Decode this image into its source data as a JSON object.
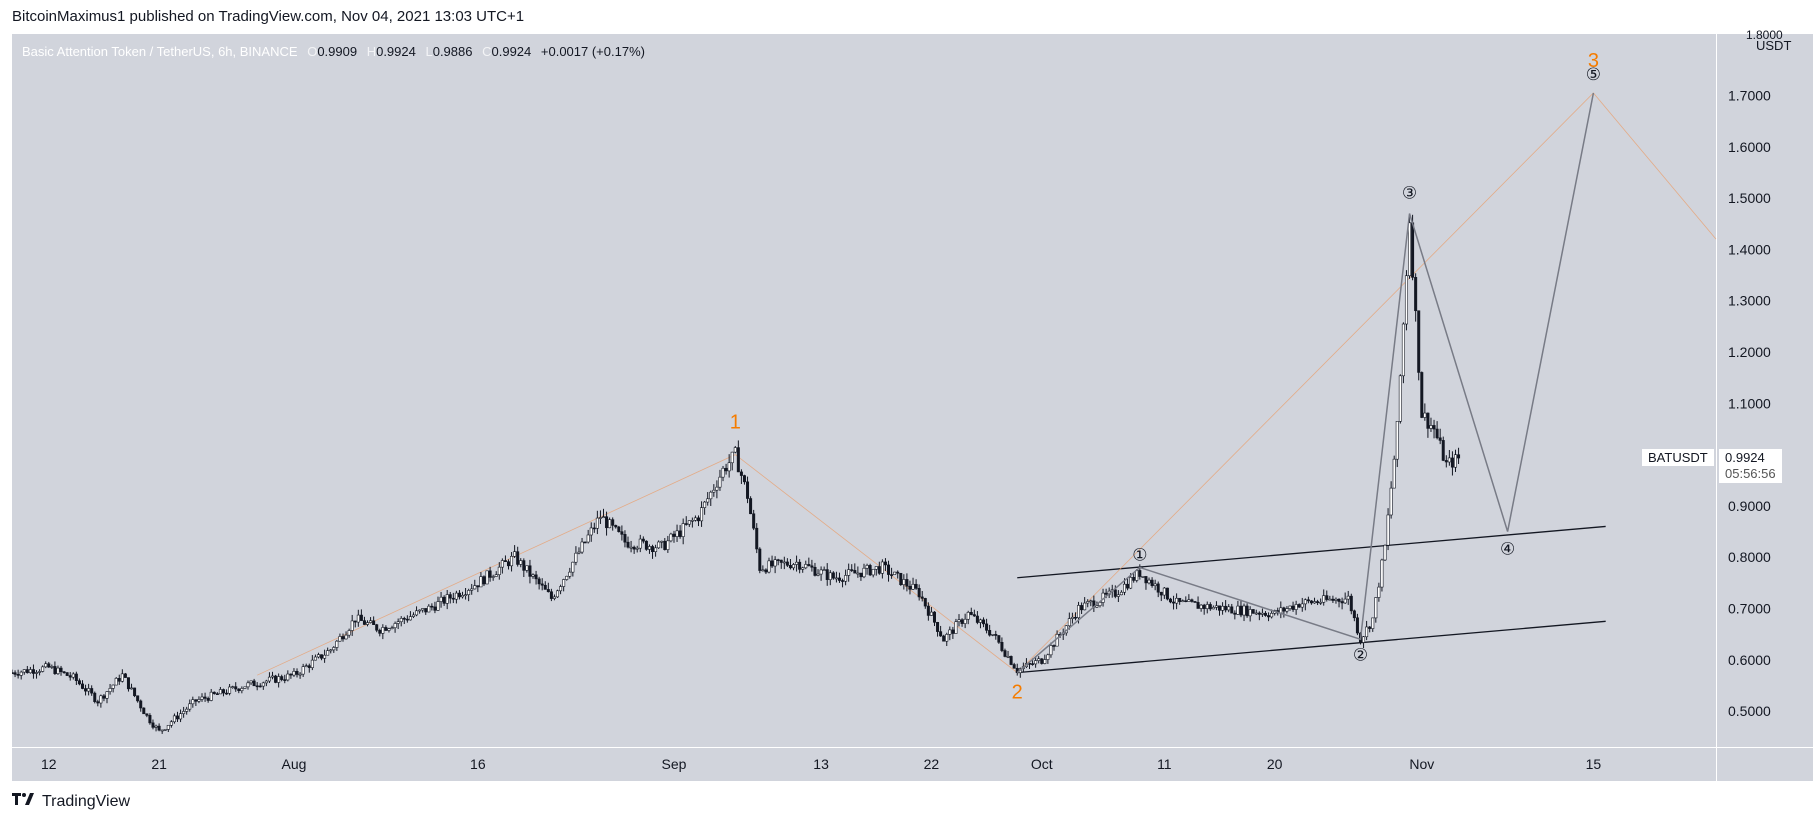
{
  "header": {
    "publisher": "BitcoinMaximus1 published on TradingView.com, Nov 04, 2021 13:03 UTC+1"
  },
  "legend": {
    "symbol": "Basic Attention Token / TetherUS, 6h, BINANCE",
    "o_label": "O",
    "o": "0.9909",
    "h_label": "H",
    "h": "0.9924",
    "l_label": "L",
    "l": "0.9886",
    "c_label": "C",
    "c": "0.9924",
    "change": "+0.0017 (+0.17%)"
  },
  "price_badge": {
    "symbol": "BATUSDT",
    "price": "0.9924",
    "countdown": "05:56:56"
  },
  "axis": {
    "currency": "USDT",
    "top_label": "1.8000"
  },
  "brand": {
    "name": "TradingView"
  },
  "colors": {
    "background": "#d1d4dc",
    "candle": "#131722",
    "wave_orange": "#f57c00",
    "wave_line": "#787b86",
    "channel": "#131722"
  },
  "chart_data": {
    "type": "candlestick",
    "title": "Basic Attention Token / TetherUS, 6h, BINANCE",
    "ylabel": "USDT",
    "ylim": [
      0.43,
      1.82
    ],
    "y_ticks": [
      0.5,
      0.6,
      0.7,
      0.8,
      0.9,
      1.0,
      1.1,
      1.2,
      1.3,
      1.4,
      1.5,
      1.6,
      1.7
    ],
    "x_ticks": [
      "12",
      "21",
      "Aug",
      "16",
      "Sep",
      "13",
      "22",
      "Oct",
      "11",
      "20",
      "Nov",
      "15"
    ],
    "x_tick_dates": [
      "2021-07-12",
      "2021-07-21",
      "2021-08-01",
      "2021-08-16",
      "2021-09-01",
      "2021-09-13",
      "2021-09-22",
      "2021-10-01",
      "2021-10-11",
      "2021-10-20",
      "2021-11-01",
      "2021-11-15"
    ],
    "price_path": [
      [
        "2021-07-09",
        0.575
      ],
      [
        "2021-07-12",
        0.585
      ],
      [
        "2021-07-14",
        0.565
      ],
      [
        "2021-07-16",
        0.52
      ],
      [
        "2021-07-18",
        0.57
      ],
      [
        "2021-07-20",
        0.49
      ],
      [
        "2021-07-21",
        0.46
      ],
      [
        "2021-07-24",
        0.52
      ],
      [
        "2021-07-28",
        0.55
      ],
      [
        "2021-08-01",
        0.57
      ],
      [
        "2021-08-04",
        0.62
      ],
      [
        "2021-08-06",
        0.68
      ],
      [
        "2021-08-08",
        0.66
      ],
      [
        "2021-08-12",
        0.7
      ],
      [
        "2021-08-16",
        0.75
      ],
      [
        "2021-08-19",
        0.8
      ],
      [
        "2021-08-22",
        0.72
      ],
      [
        "2021-08-26",
        0.88
      ],
      [
        "2021-08-28",
        0.83
      ],
      [
        "2021-08-31",
        0.82
      ],
      [
        "2021-09-03",
        0.88
      ],
      [
        "2021-09-05",
        0.97
      ],
      [
        "2021-09-06",
        1.0
      ],
      [
        "2021-09-07",
        0.92
      ],
      [
        "2021-09-08",
        0.78
      ],
      [
        "2021-09-11",
        0.79
      ],
      [
        "2021-09-14",
        0.76
      ],
      [
        "2021-09-18",
        0.78
      ],
      [
        "2021-09-21",
        0.73
      ],
      [
        "2021-09-23",
        0.64
      ],
      [
        "2021-09-25",
        0.69
      ],
      [
        "2021-09-27",
        0.65
      ],
      [
        "2021-09-29",
        0.58
      ],
      [
        "2021-10-01",
        0.6
      ],
      [
        "2021-10-04",
        0.7
      ],
      [
        "2021-10-07",
        0.73
      ],
      [
        "2021-10-09",
        0.77
      ],
      [
        "2021-10-12",
        0.71
      ],
      [
        "2021-10-16",
        0.7
      ],
      [
        "2021-10-20",
        0.69
      ],
      [
        "2021-10-22",
        0.71
      ],
      [
        "2021-10-26",
        0.72
      ],
      [
        "2021-10-27",
        0.64
      ],
      [
        "2021-10-28",
        0.68
      ],
      [
        "2021-10-29",
        0.82
      ],
      [
        "2021-10-30",
        1.05
      ],
      [
        "2021-10-31",
        1.46
      ],
      [
        "2021-11-01",
        1.08
      ],
      [
        "2021-11-02",
        1.05
      ],
      [
        "2021-11-03",
        0.98
      ],
      [
        "2021-11-04",
        0.9924
      ]
    ],
    "wave_labels": [
      {
        "label": "1",
        "date": "2021-09-06",
        "price": 1.0,
        "color": "orange"
      },
      {
        "label": "2",
        "date": "2021-09-29",
        "price": 0.575,
        "color": "orange"
      },
      {
        "label": "3",
        "date": "2021-11-15",
        "price": 1.705,
        "color": "orange"
      },
      {
        "label": "①",
        "date": "2021-10-09",
        "price": 0.78
      },
      {
        "label": "②",
        "date": "2021-10-27",
        "price": 0.64
      },
      {
        "label": "③",
        "date": "2021-10-31",
        "price": 1.47
      },
      {
        "label": "④",
        "date": "2021-11-08",
        "price": 0.85
      },
      {
        "label": "⑤",
        "date": "2021-11-15",
        "price": 1.705
      }
    ],
    "wave_path": [
      [
        "2021-09-29",
        0.575
      ],
      [
        "2021-10-09",
        0.78
      ],
      [
        "2021-10-27",
        0.64
      ],
      [
        "2021-10-31",
        1.47
      ],
      [
        "2021-11-08",
        0.85
      ],
      [
        "2021-11-15",
        1.705
      ]
    ],
    "orange_path": [
      [
        "2021-07-29",
        0.57
      ],
      [
        "2021-09-06",
        1.0
      ],
      [
        "2021-09-29",
        0.575
      ],
      [
        "2021-11-15",
        1.705
      ],
      [
        "2021-11-25",
        1.42
      ]
    ],
    "channel_upper": [
      [
        "2021-09-29",
        0.76
      ],
      [
        "2021-11-16",
        0.86
      ]
    ],
    "channel_lower": [
      [
        "2021-09-29",
        0.575
      ],
      [
        "2021-11-16",
        0.675
      ]
    ]
  }
}
